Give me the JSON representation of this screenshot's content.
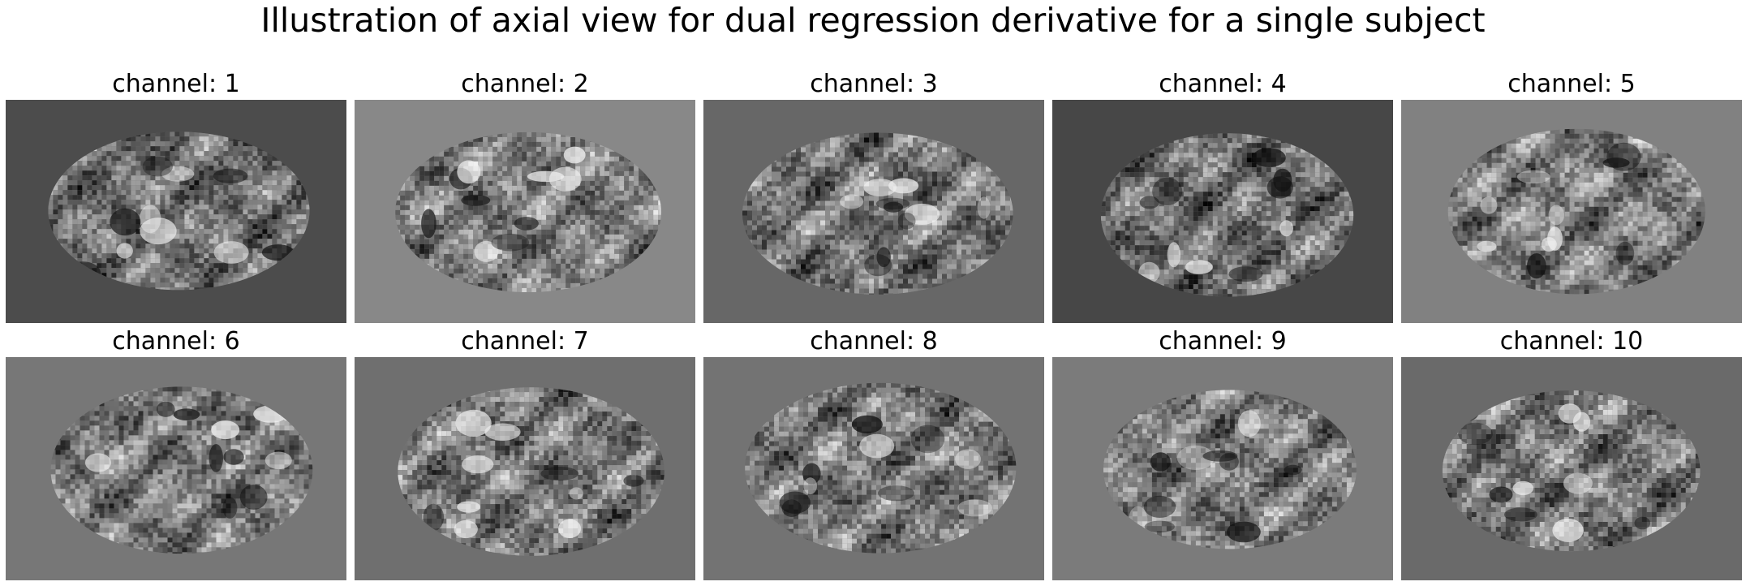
{
  "figure": {
    "title": "Illustration of axial view for dual regression derivative for a single subject"
  },
  "panels": [
    {
      "title": "channel: 1",
      "background": "#4c4c4c"
    },
    {
      "title": "channel: 2",
      "background": "#888888"
    },
    {
      "title": "channel: 3",
      "background": "#676767"
    },
    {
      "title": "channel: 4",
      "background": "#474747"
    },
    {
      "title": "channel: 5",
      "background": "#818181"
    },
    {
      "title": "channel: 6",
      "background": "#777777"
    },
    {
      "title": "channel: 7",
      "background": "#6f6f6f"
    },
    {
      "title": "channel: 8",
      "background": "#737373"
    },
    {
      "title": "channel: 9",
      "background": "#7b7b7b"
    },
    {
      "title": "channel: 10",
      "background": "#6a6a6a"
    }
  ]
}
